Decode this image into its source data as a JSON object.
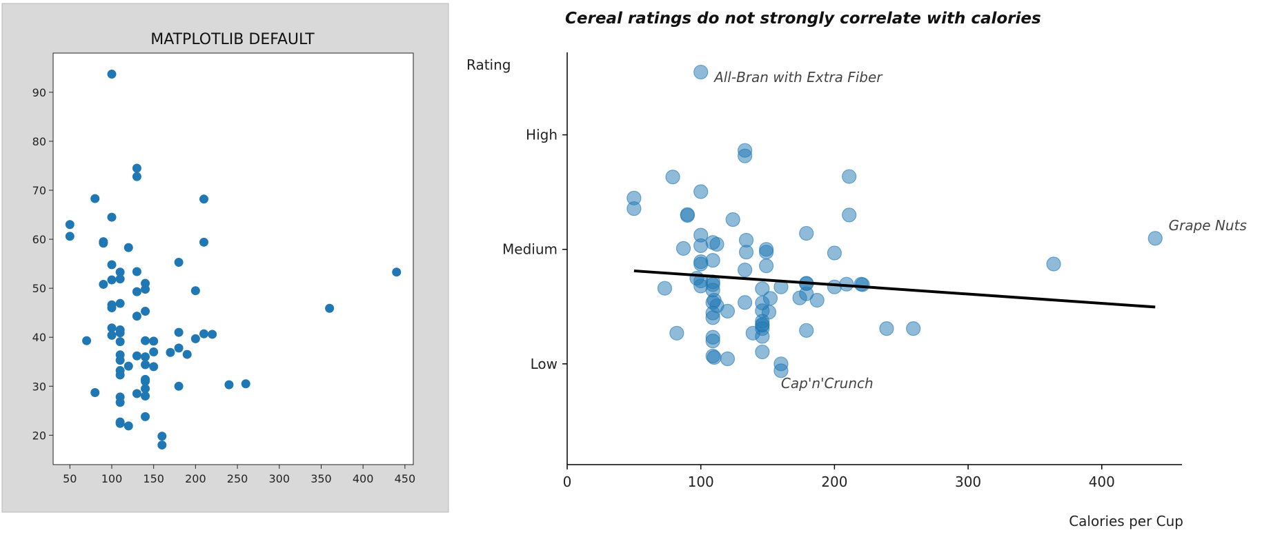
{
  "chart_data": [
    {
      "type": "scatter",
      "title": "MATPLOTLIB DEFAULT",
      "xlabel": "",
      "ylabel": "",
      "xlim": [
        30,
        460
      ],
      "ylim": [
        14,
        98
      ],
      "xticks": [
        50,
        100,
        150,
        200,
        250,
        300,
        350,
        400,
        450
      ],
      "yticks": [
        20,
        30,
        40,
        50,
        60,
        70,
        80,
        90
      ],
      "background": "#d9d9d9",
      "point_color": "#1f77b4",
      "grid": false,
      "points": [
        [
          50,
          63.0
        ],
        [
          50,
          60.6
        ],
        [
          70,
          39.3
        ],
        [
          80,
          68.3
        ],
        [
          80,
          28.7
        ],
        [
          90,
          59.5
        ],
        [
          90,
          59.2
        ],
        [
          90,
          50.8
        ],
        [
          100,
          93.7
        ],
        [
          100,
          64.5
        ],
        [
          100,
          54.8
        ],
        [
          100,
          51.7
        ],
        [
          100,
          46.6
        ],
        [
          100,
          46.0
        ],
        [
          100,
          41.9
        ],
        [
          100,
          40.4
        ],
        [
          110,
          53.3
        ],
        [
          110,
          51.9
        ],
        [
          110,
          46.9
        ],
        [
          110,
          41.5
        ],
        [
          110,
          40.9
        ],
        [
          110,
          39.1
        ],
        [
          110,
          36.4
        ],
        [
          110,
          35.3
        ],
        [
          110,
          33.2
        ],
        [
          110,
          32.3
        ],
        [
          110,
          27.8
        ],
        [
          110,
          26.7
        ],
        [
          110,
          22.7
        ],
        [
          110,
          22.4
        ],
        [
          120,
          58.3
        ],
        [
          120,
          34.1
        ],
        [
          120,
          21.9
        ],
        [
          130,
          53.4
        ],
        [
          130,
          49.3
        ],
        [
          130,
          44.3
        ],
        [
          130,
          36.2
        ],
        [
          130,
          28.5
        ],
        [
          130,
          74.5
        ],
        [
          130,
          72.8
        ],
        [
          140,
          51.0
        ],
        [
          140,
          49.8
        ],
        [
          140,
          45.3
        ],
        [
          140,
          39.3
        ],
        [
          140,
          36.0
        ],
        [
          140,
          34.4
        ],
        [
          140,
          31.4
        ],
        [
          140,
          31.0
        ],
        [
          140,
          29.5
        ],
        [
          140,
          28.0
        ],
        [
          140,
          23.8
        ],
        [
          150,
          37.0
        ],
        [
          150,
          34.0
        ],
        [
          150,
          39.2
        ],
        [
          160,
          19.8
        ],
        [
          160,
          18.0
        ],
        [
          170,
          36.9
        ],
        [
          180,
          55.3
        ],
        [
          180,
          41.0
        ],
        [
          180,
          37.8
        ],
        [
          180,
          30.0
        ],
        [
          190,
          36.5
        ],
        [
          200,
          49.5
        ],
        [
          200,
          39.7
        ],
        [
          210,
          68.2
        ],
        [
          210,
          59.4
        ],
        [
          210,
          40.7
        ],
        [
          220,
          40.6
        ],
        [
          240,
          30.3
        ],
        [
          260,
          30.5
        ],
        [
          360,
          45.9
        ],
        [
          440,
          53.3
        ]
      ]
    },
    {
      "type": "scatter",
      "title": "Cereal ratings do not strongly correlate with calories",
      "xlabel": "Calories per Cup",
      "ylabel": "Rating",
      "xlim": [
        0,
        460
      ],
      "ylim": [
        8,
        98
      ],
      "xticks": [
        0,
        100,
        200,
        300,
        400
      ],
      "yticks": [
        {
          "value": 30,
          "label": "Low"
        },
        {
          "value": 55,
          "label": "Medium"
        },
        {
          "value": 80,
          "label": "High"
        }
      ],
      "point_color": "#1f77b4",
      "trend": {
        "x": [
          50,
          440
        ],
        "y": [
          50.3,
          42.4
        ],
        "color": "#000000"
      },
      "points": [
        [
          100,
          93.7
        ],
        [
          133,
          76.6
        ],
        [
          133,
          75.4
        ],
        [
          79,
          70.8
        ],
        [
          211,
          70.9
        ],
        [
          100,
          67.6
        ],
        [
          50,
          66.2
        ],
        [
          50,
          63.9
        ],
        [
          90,
          62.6
        ],
        [
          90,
          62.4
        ],
        [
          124,
          61.5
        ],
        [
          211,
          62.5
        ],
        [
          100,
          58.1
        ],
        [
          134,
          57.0
        ],
        [
          179,
          58.5
        ],
        [
          109,
          56.5
        ],
        [
          112,
          56.1
        ],
        [
          100,
          55.8
        ],
        [
          87,
          55.2
        ],
        [
          134,
          54.4
        ],
        [
          149,
          55.0
        ],
        [
          149,
          54.4
        ],
        [
          200,
          54.2
        ],
        [
          100,
          52.3
        ],
        [
          100,
          51.8
        ],
        [
          109,
          52.6
        ],
        [
          133,
          50.5
        ],
        [
          149,
          51.4
        ],
        [
          364,
          51.8
        ],
        [
          97,
          48.7
        ],
        [
          100,
          48.1
        ],
        [
          109,
          47.9
        ],
        [
          109,
          47.3
        ],
        [
          100,
          47.0
        ],
        [
          109,
          46.1
        ],
        [
          73,
          46.5
        ],
        [
          146,
          46.4
        ],
        [
          160,
          46.8
        ],
        [
          179,
          47.6
        ],
        [
          179,
          47.5
        ],
        [
          200,
          46.8
        ],
        [
          209,
          47.4
        ],
        [
          220,
          47.4
        ],
        [
          221,
          47.3
        ],
        [
          110,
          43.9
        ],
        [
          109,
          43.4
        ],
        [
          112,
          42.7
        ],
        [
          133,
          43.4
        ],
        [
          146,
          43.3
        ],
        [
          152,
          44.3
        ],
        [
          174,
          44.4
        ],
        [
          179,
          45.3
        ],
        [
          187,
          43.9
        ],
        [
          109,
          41.1
        ],
        [
          120,
          41.5
        ],
        [
          146,
          41.6
        ],
        [
          151,
          41.3
        ],
        [
          109,
          40.1
        ],
        [
          146,
          39.3
        ],
        [
          146,
          38.6
        ],
        [
          146,
          38.4
        ],
        [
          146,
          37.7
        ],
        [
          139,
          36.7
        ],
        [
          146,
          36.0
        ],
        [
          179,
          37.3
        ],
        [
          239,
          37.7
        ],
        [
          259,
          37.7
        ],
        [
          82,
          36.7
        ],
        [
          109,
          35.8
        ],
        [
          109,
          35.0
        ],
        [
          146,
          32.6
        ],
        [
          109,
          31.7
        ],
        [
          110,
          31.4
        ],
        [
          120,
          31.1
        ],
        [
          160,
          30.0
        ],
        [
          160,
          28.5
        ],
        [
          440,
          57.4
        ]
      ],
      "annotations": [
        {
          "text": "All-Bran with Extra Fiber",
          "x": 110,
          "y": 91.5
        },
        {
          "text": "Grape Nuts",
          "x": 450,
          "y": 59.2
        },
        {
          "text": "Cap'n'Crunch",
          "x": 160,
          "y": 24.7
        }
      ]
    }
  ]
}
